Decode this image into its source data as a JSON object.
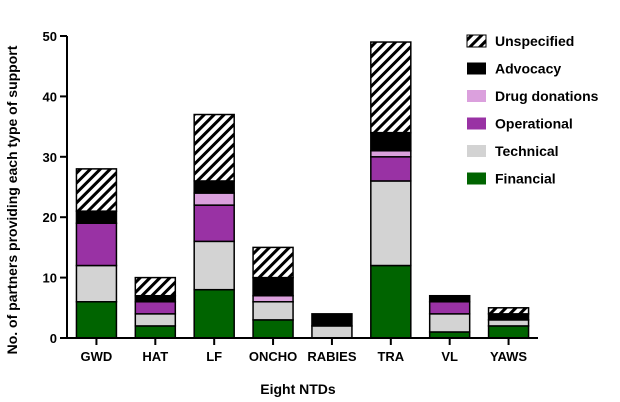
{
  "chart_data": {
    "type": "bar",
    "stacked": true,
    "xlabel": "Eight NTDs",
    "ylabel": "No. of partners providing each type of support",
    "ylim": [
      0,
      50
    ],
    "yticks": [
      0,
      10,
      20,
      30,
      40,
      50
    ],
    "categories": [
      "GWD",
      "HAT",
      "LF",
      "ONCHO",
      "RABIES",
      "TRA",
      "VL",
      "YAWS"
    ],
    "legend_position": "right",
    "series": [
      {
        "name": "Financial",
        "color": "#006400",
        "pattern": "solid",
        "values": [
          6,
          2,
          8,
          3,
          0,
          12,
          1,
          2
        ]
      },
      {
        "name": "Technical",
        "color": "#d3d3d3",
        "pattern": "solid",
        "values": [
          6,
          2,
          8,
          3,
          2,
          14,
          3,
          1
        ]
      },
      {
        "name": "Operational",
        "color": "#9932a4",
        "pattern": "solid",
        "values": [
          7,
          2,
          6,
          0,
          0,
          4,
          2,
          0
        ]
      },
      {
        "name": "Drug donations",
        "color": "#dba0dd",
        "pattern": "solid",
        "values": [
          0,
          0,
          2,
          1,
          0,
          1,
          0,
          0
        ]
      },
      {
        "name": "Advocacy",
        "color": "#000000",
        "pattern": "solid",
        "values": [
          2,
          1,
          2,
          3,
          2,
          3,
          1,
          1
        ]
      },
      {
        "name": "Unspecified",
        "color": "#000000",
        "pattern": "hatched",
        "values": [
          7,
          3,
          11,
          5,
          0,
          15,
          0,
          1
        ]
      }
    ]
  }
}
